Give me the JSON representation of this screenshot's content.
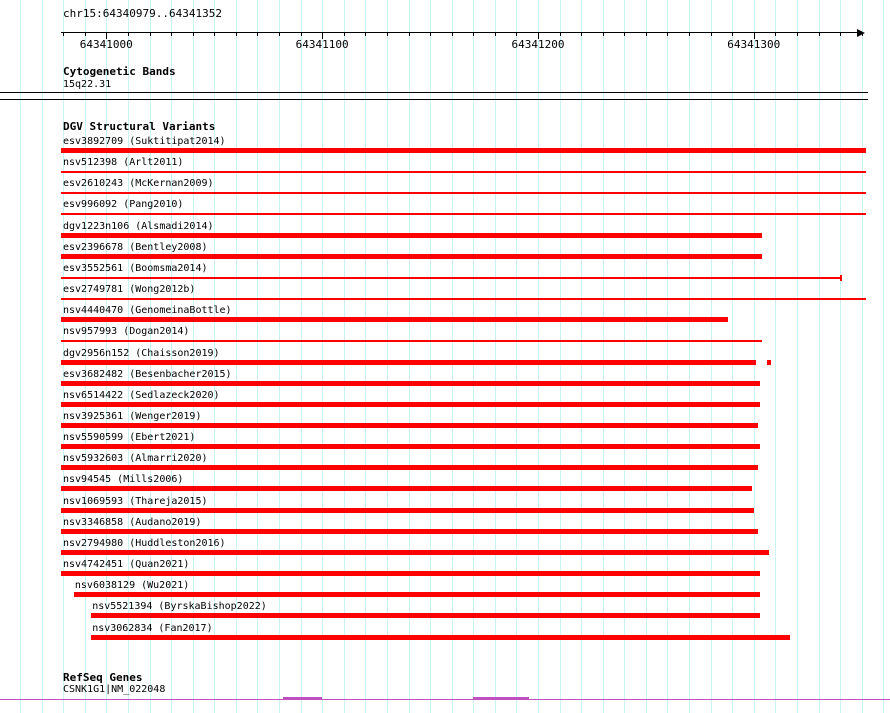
{
  "colors": {
    "background": "#ffffff",
    "grid": "#c9f2f2",
    "feature": "#ff0000",
    "gene": "#c050c0",
    "text": "#000000"
  },
  "region": {
    "label": "chr15:64340979..64341352",
    "chromosome": "chr15",
    "view_start": 64340979,
    "view_end": 64341352
  },
  "ruler": {
    "major_ticks": [
      {
        "pos": 64341000,
        "label": "64341000"
      },
      {
        "pos": 64341100,
        "label": "64341100"
      },
      {
        "pos": 64341200,
        "label": "64341200"
      },
      {
        "pos": 64341300,
        "label": "64341300"
      }
    ],
    "minor_tick_step": 10
  },
  "tracks": {
    "cytobands": {
      "title": "Cytogenetic Bands",
      "band_label": "15q22.31",
      "band_start": 64340979,
      "band_end": 64341352
    },
    "dgv": {
      "title": "DGV Structural Variants"
    },
    "refseq": {
      "title": "RefSeq Genes",
      "gene_label": "CSNK1G1|NM_022048",
      "segments": [
        {
          "start": 64341082,
          "end": 64341100
        },
        {
          "start": 64341170,
          "end": 64341196
        }
      ]
    }
  },
  "chart_data": {
    "type": "bar",
    "orientation": "horizontal",
    "title": "DGV Structural Variants",
    "xlabel": "",
    "ylabel": "",
    "xlim": [
      64340979,
      64341352
    ],
    "x_ticks": [
      64341000,
      64341100,
      64341200,
      64341300
    ],
    "grid": {
      "step_bp": 10
    },
    "legend": false,
    "series": [
      {
        "name": "esv3892709 (Suktitipat2014)",
        "start": 64340979,
        "end": 64341352,
        "glyph": "box"
      },
      {
        "name": "nsv512398 (Arlt2011)",
        "start": 64340979,
        "end": 64341352,
        "glyph": "line"
      },
      {
        "name": "esv2610243 (McKernan2009)",
        "start": 64340979,
        "end": 64341352,
        "glyph": "line"
      },
      {
        "name": "esv996092 (Pang2010)",
        "start": 64340979,
        "end": 64341352,
        "glyph": "line"
      },
      {
        "name": "dgv1223n106 (Alsmadi2014)",
        "start": 64340979,
        "end": 64341304,
        "glyph": "box"
      },
      {
        "name": "esv2396678 (Bentley2008)",
        "start": 64340979,
        "end": 64341304,
        "glyph": "box"
      },
      {
        "name": "esv3552561 (Boomsma2014)",
        "start": 64340979,
        "end": 64341341,
        "glyph": "line",
        "end_tick": true
      },
      {
        "name": "esv2749781 (Wong2012b)",
        "start": 64340979,
        "end": 64341352,
        "glyph": "line"
      },
      {
        "name": "nsv4440470 (GenomeinaBottle)",
        "start": 64340979,
        "end": 64341288,
        "glyph": "box"
      },
      {
        "name": "nsv957993 (Dogan2014)",
        "start": 64340979,
        "end": 64341304,
        "glyph": "line"
      },
      {
        "name": "dgv2956n152 (Chaisson2019)",
        "start": 64340979,
        "end": 64341301,
        "glyph": "box",
        "extra_tick": 64341306
      },
      {
        "name": "esv3682482 (Besenbacher2015)",
        "start": 64340979,
        "end": 64341303,
        "glyph": "box"
      },
      {
        "name": "nsv6514422 (Sedlazeck2020)",
        "start": 64340979,
        "end": 64341303,
        "glyph": "box"
      },
      {
        "name": "nsv3925361 (Wenger2019)",
        "start": 64340979,
        "end": 64341302,
        "glyph": "box"
      },
      {
        "name": "nsv5590599 (Ebert2021)",
        "start": 64340979,
        "end": 64341303,
        "glyph": "box"
      },
      {
        "name": "nsv5932603 (Almarri2020)",
        "start": 64340979,
        "end": 64341302,
        "glyph": "box"
      },
      {
        "name": "nsv94545 (Mills2006)",
        "start": 64340979,
        "end": 64341299,
        "glyph": "box"
      },
      {
        "name": "nsv1069593 (Thareja2015)",
        "start": 64340979,
        "end": 64341300,
        "glyph": "box"
      },
      {
        "name": "nsv3346858 (Audano2019)",
        "start": 64340979,
        "end": 64341302,
        "glyph": "box"
      },
      {
        "name": "nsv2794980 (Huddleston2016)",
        "start": 64340979,
        "end": 64341307,
        "glyph": "box"
      },
      {
        "name": "nsv4742451 (Quan2021)",
        "start": 64340979,
        "end": 64341303,
        "glyph": "box"
      },
      {
        "name": "nsv6038129 (Wu2021)",
        "start": 64340985,
        "end": 64341303,
        "glyph": "box"
      },
      {
        "name": "nsv5521394 (ByrskaBishop2022)",
        "start": 64340993,
        "end": 64341303,
        "glyph": "box"
      },
      {
        "name": "nsv3062834 (Fan2017)",
        "start": 64340993,
        "end": 64341317,
        "glyph": "box"
      }
    ]
  }
}
